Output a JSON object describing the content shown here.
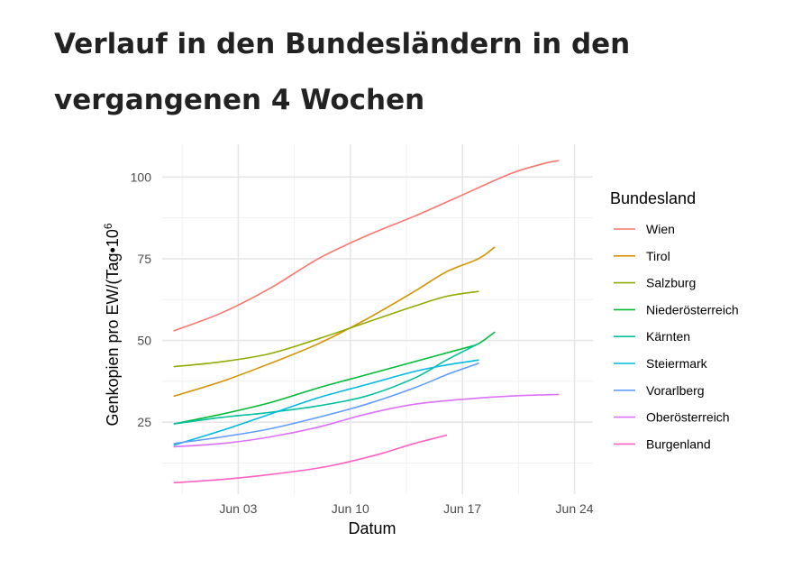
{
  "page": {
    "title": "Verlauf in den Bundesländern in den vergangenen 4 Wochen"
  },
  "chart_data": {
    "type": "line",
    "xlabel": "Datum",
    "ylabel_main": "Genkopien pro EW/(Tag•10",
    "ylabel_sup": "6",
    "x_ticks": [
      {
        "day": 3,
        "label": "Jun 03"
      },
      {
        "day": 10,
        "label": "Jun 10"
      },
      {
        "day": 17,
        "label": "Jun 17"
      },
      {
        "day": 24,
        "label": "Jun 24"
      }
    ],
    "y_ticks": [
      25,
      50,
      75,
      100
    ],
    "xlim_days": [
      -1.75,
      25.15
    ],
    "ylim": [
      3,
      110
    ],
    "grid": true,
    "legend": {
      "title": "Bundesland",
      "position": "right"
    },
    "series": [
      {
        "name": "Wien",
        "color": "#F8766D",
        "points": [
          [
            -1,
            53
          ],
          [
            2,
            58.5
          ],
          [
            5,
            66
          ],
          [
            8,
            75
          ],
          [
            11,
            82
          ],
          [
            14,
            88
          ],
          [
            17,
            94.5
          ],
          [
            20,
            101
          ],
          [
            22,
            104
          ],
          [
            23,
            105
          ]
        ]
      },
      {
        "name": "Tirol",
        "color": "#D39200",
        "points": [
          [
            -1,
            33
          ],
          [
            2,
            37.5
          ],
          [
            5,
            43
          ],
          [
            8,
            49
          ],
          [
            11,
            56.5
          ],
          [
            14,
            65
          ],
          [
            16,
            71
          ],
          [
            18,
            75
          ],
          [
            19,
            78.5
          ]
        ]
      },
      {
        "name": "Salzburg",
        "color": "#93AA00",
        "points": [
          [
            -1,
            42
          ],
          [
            2,
            43.5
          ],
          [
            5,
            46
          ],
          [
            8,
            50.5
          ],
          [
            11,
            55.5
          ],
          [
            14,
            60.5
          ],
          [
            16,
            63.5
          ],
          [
            18,
            65
          ]
        ]
      },
      {
        "name": "Niederösterreich",
        "color": "#00BA38",
        "points": [
          [
            -1,
            24.5
          ],
          [
            2,
            27.5
          ],
          [
            5,
            31
          ],
          [
            8,
            35.5
          ],
          [
            11,
            39.5
          ],
          [
            14,
            43.5
          ],
          [
            17,
            47.5
          ],
          [
            18,
            49
          ],
          [
            19,
            52.5
          ]
        ]
      },
      {
        "name": "Kärnten",
        "color": "#00C19F",
        "points": [
          [
            -1,
            24.5
          ],
          [
            2,
            26.5
          ],
          [
            5,
            28
          ],
          [
            8,
            30
          ],
          [
            11,
            33
          ],
          [
            14,
            38.5
          ],
          [
            16,
            44
          ],
          [
            18,
            49
          ]
        ]
      },
      {
        "name": "Steiermark",
        "color": "#00B9E3",
        "points": [
          [
            -1,
            18
          ],
          [
            2,
            22.5
          ],
          [
            5,
            27.5
          ],
          [
            8,
            32.5
          ],
          [
            11,
            36.5
          ],
          [
            14,
            40.5
          ],
          [
            16,
            42.5
          ],
          [
            18,
            44
          ]
        ]
      },
      {
        "name": "Vorarlberg",
        "color": "#619CFF",
        "points": [
          [
            -1,
            18.5
          ],
          [
            2,
            20.5
          ],
          [
            5,
            23
          ],
          [
            8,
            26.5
          ],
          [
            11,
            30.5
          ],
          [
            14,
            35.5
          ],
          [
            16,
            39.5
          ],
          [
            18,
            43
          ]
        ]
      },
      {
        "name": "Oberösterreich",
        "color": "#DB72FB",
        "points": [
          [
            -1,
            17.5
          ],
          [
            2,
            18.5
          ],
          [
            5,
            20.5
          ],
          [
            8,
            23.5
          ],
          [
            11,
            27.5
          ],
          [
            14,
            30.5
          ],
          [
            17,
            32
          ],
          [
            20,
            33
          ],
          [
            23,
            33.5
          ]
        ]
      },
      {
        "name": "Burgenland",
        "color": "#FF61C3",
        "points": [
          [
            -1,
            6.5
          ],
          [
            2,
            7.5
          ],
          [
            5,
            9
          ],
          [
            8,
            11
          ],
          [
            10,
            13
          ],
          [
            12,
            15.5
          ],
          [
            14,
            18.5
          ],
          [
            16,
            21
          ]
        ]
      }
    ]
  }
}
